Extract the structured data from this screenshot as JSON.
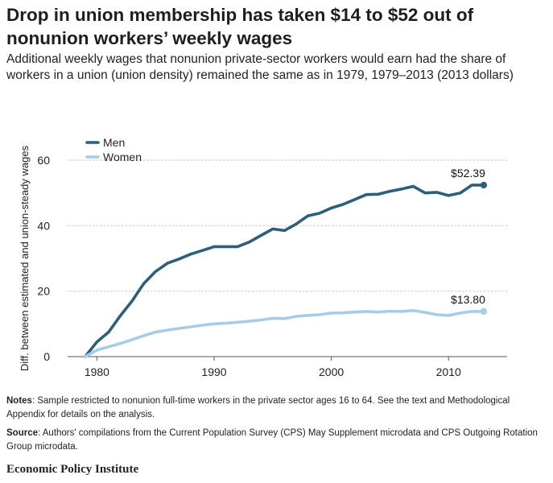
{
  "title": "Drop in union membership has taken $14 to $52 out of nonunion workers’ weekly wages",
  "subtitle": "Additional weekly wages that nonunion private-sector workers would earn had the share of workers in a union (union density) remained the same as in 1979, 1979–2013 (2013 dollars)",
  "notes": {
    "notes_label": "Notes",
    "notes_text": ": Sample restricted to nonunion full-time workers in the private sector ages 16 to 64. See the text and Methodological Appendix for details on the analysis.",
    "source_label": "Source",
    "source_text": ": Authors' compilations from the Current Population Survey (CPS) May Supplement microdata and CPS Outgoing Rotation Group microdata."
  },
  "organization": "Economic Policy Institute",
  "colors": {
    "men": "#2d5f7a",
    "women": "#a7cde6",
    "grid": "#d7d7d7",
    "axis": "#555555"
  },
  "chart_data": {
    "type": "line",
    "title": "",
    "xlabel": "",
    "ylabel": "Diff. between estimated and union-steady wages",
    "xlim": [
      1977.5,
      2015
    ],
    "ylim": [
      0,
      60
    ],
    "xticks": [
      1980,
      1990,
      2000,
      2010
    ],
    "yticks": [
      0,
      20,
      40,
      60
    ],
    "grid": "horizontal dotted",
    "legend": "top-left",
    "x": [
      1979,
      1980,
      1981,
      1982,
      1983,
      1984,
      1985,
      1986,
      1987,
      1988,
      1989,
      1990,
      1991,
      1992,
      1993,
      1994,
      1995,
      1996,
      1997,
      1998,
      1999,
      2000,
      2001,
      2002,
      2003,
      2004,
      2005,
      2006,
      2007,
      2008,
      2009,
      2010,
      2011,
      2012,
      2013
    ],
    "series": [
      {
        "name": "Men",
        "end_label": "$52.39",
        "values": [
          0,
          4.5,
          7.5,
          12.5,
          17,
          22.3,
          26,
          28.5,
          29.8,
          31.3,
          32.4,
          33.6,
          33.6,
          33.6,
          35,
          37,
          39,
          38.5,
          40.5,
          43,
          43.8,
          45.4,
          46.5,
          48,
          49.5,
          49.6,
          50.5,
          51.2,
          52,
          50,
          50.2,
          49.2,
          50,
          52.4,
          52.39
        ]
      },
      {
        "name": "Women",
        "end_label": "$13.80",
        "values": [
          0,
          2,
          3,
          4,
          5.2,
          6.4,
          7.5,
          8.1,
          8.6,
          9.1,
          9.6,
          10,
          10.2,
          10.5,
          10.8,
          11.2,
          11.7,
          11.6,
          12.3,
          12.6,
          12.8,
          13.3,
          13.4,
          13.6,
          13.8,
          13.6,
          13.9,
          13.8,
          14.1,
          13.5,
          12.8,
          12.6,
          13.3,
          13.8,
          13.8
        ]
      }
    ]
  }
}
